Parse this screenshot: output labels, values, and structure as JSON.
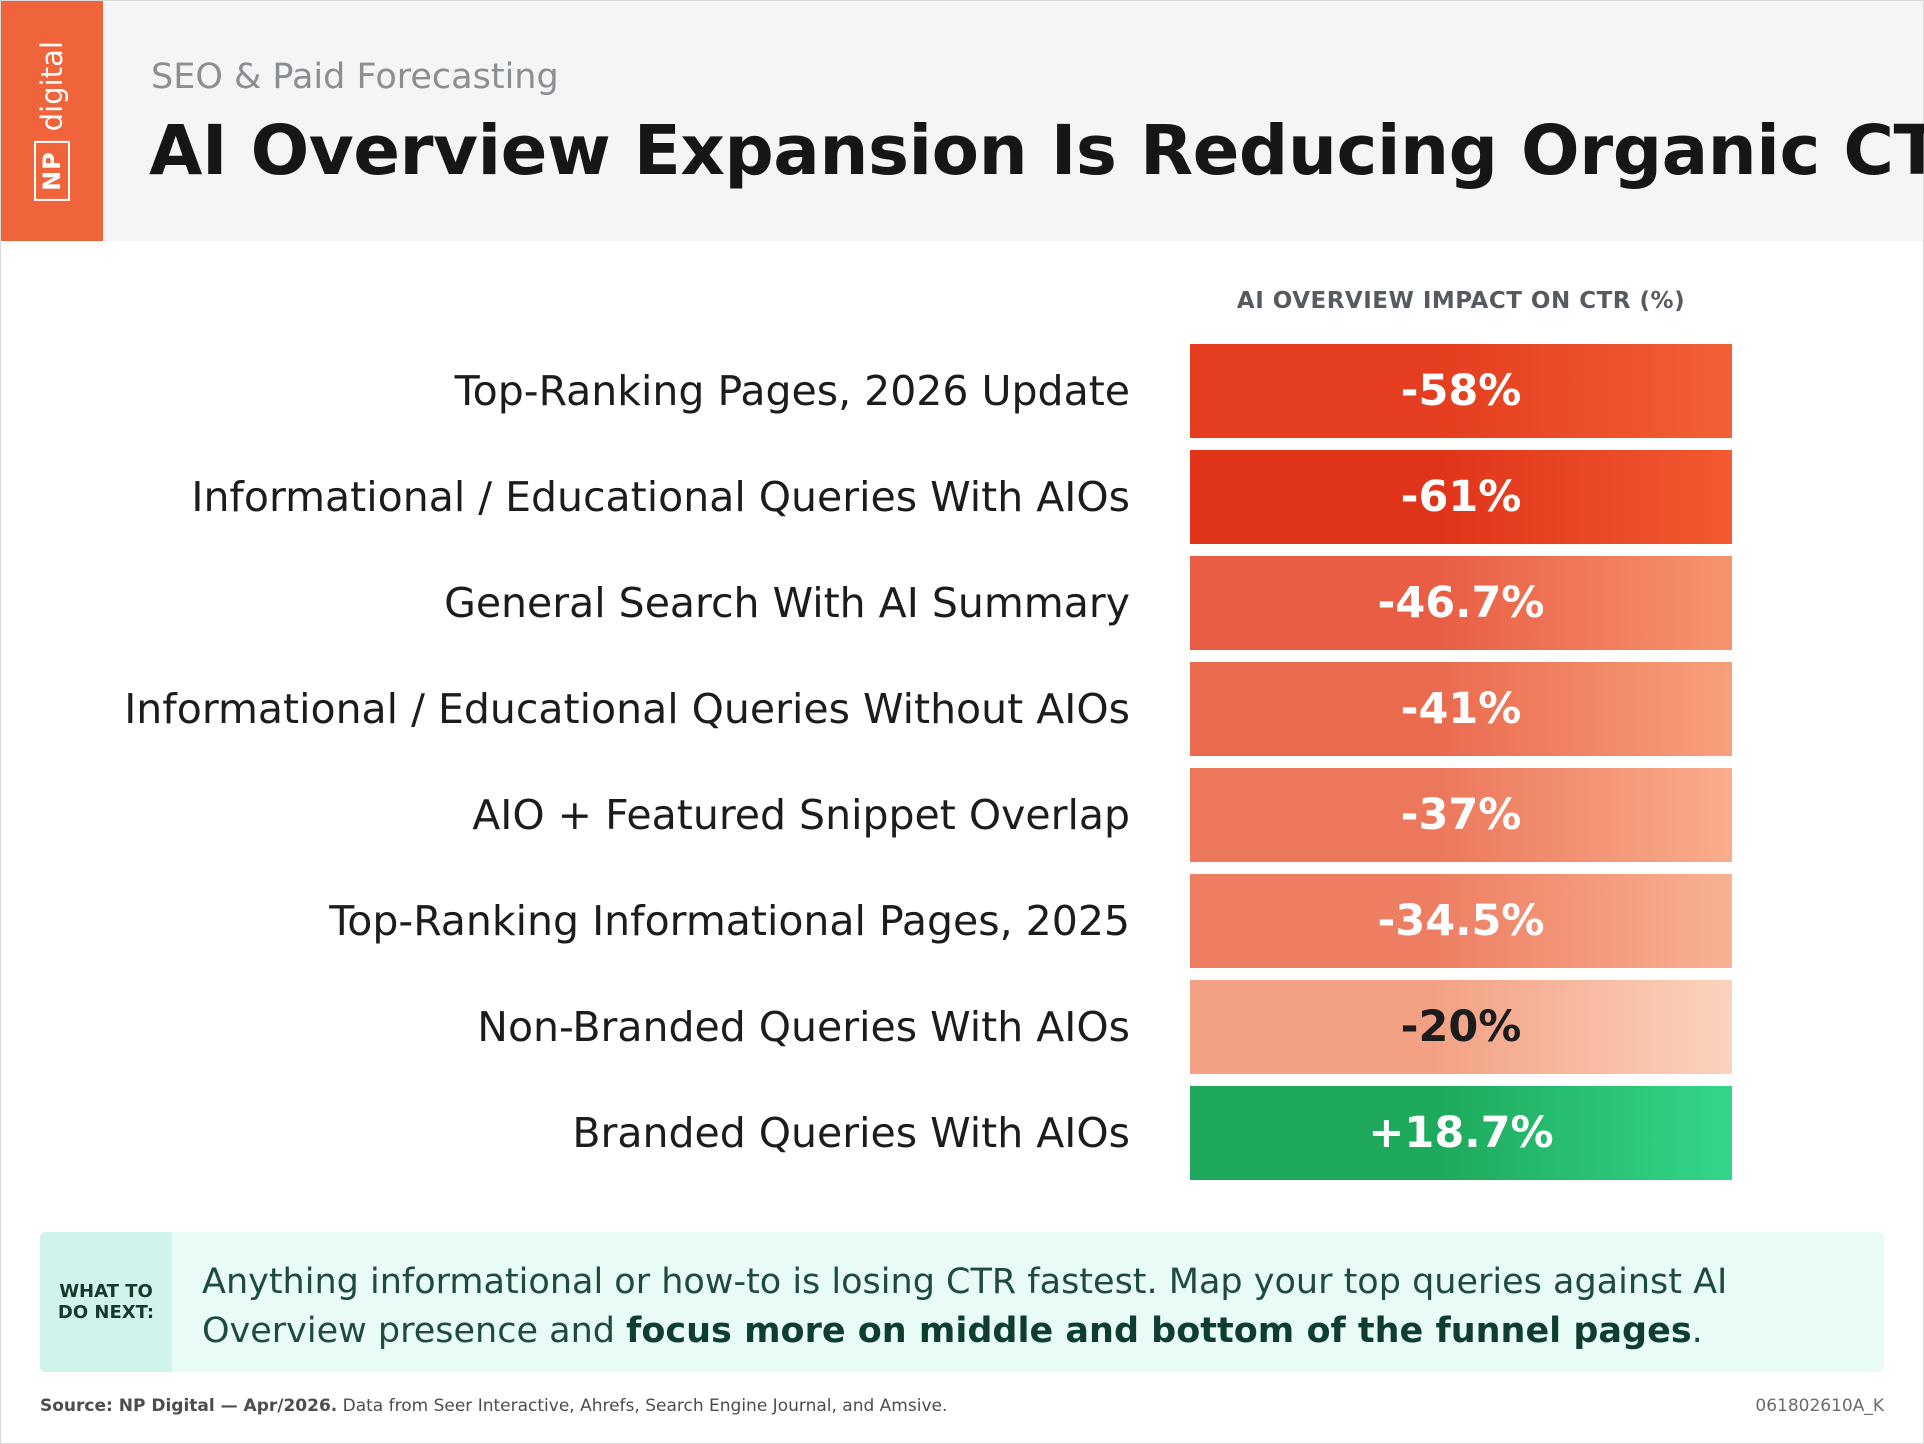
{
  "brand": {
    "logo_np": "NP",
    "logo_digital": "digital"
  },
  "header": {
    "subtitle": "SEO & Paid Forecasting",
    "title": "AI Overview Expansion Is Reducing Organic CTR"
  },
  "chart_data": {
    "type": "table",
    "column_header": "AI OVERVIEW IMPACT ON CTR (%)",
    "rows": [
      {
        "label": "Top-Ranking Pages, 2026 Update",
        "display": "-58%",
        "value": -58,
        "color_start": "#e43d1f",
        "color_end": "#f26036",
        "text_color": "#ffffff"
      },
      {
        "label": "Informational / Educational Queries With AIOs",
        "display": "-61%",
        "value": -61,
        "color_start": "#e0341a",
        "color_end": "#f25a30",
        "text_color": "#ffffff"
      },
      {
        "label": "General Search With AI Summary",
        "display": "-46.7%",
        "value": -46.7,
        "color_start": "#e85d44",
        "color_end": "#f7946d",
        "text_color": "#ffffff"
      },
      {
        "label": "Informational / Educational Queries Without AIOs",
        "display": "-41%",
        "value": -41,
        "color_start": "#ea6a4e",
        "color_end": "#f7a07c",
        "text_color": "#ffffff"
      },
      {
        "label": "AIO + Featured Snippet Overlap",
        "display": "-37%",
        "value": -37,
        "color_start": "#ec775b",
        "color_end": "#f8ad8c",
        "text_color": "#ffffff"
      },
      {
        "label": "Top-Ranking Informational Pages, 2025",
        "display": "-34.5%",
        "value": -34.5,
        "color_start": "#ee7e62",
        "color_end": "#f8b193",
        "text_color": "#ffffff"
      },
      {
        "label": "Non-Branded Queries With AIOs",
        "display": "-20%",
        "value": -20,
        "color_start": "#f3a184",
        "color_end": "#fbd3bd",
        "text_color": "#1c1c1c"
      },
      {
        "label": "Branded Queries With AIOs",
        "display": "+18.7%",
        "value": 18.7,
        "color_start": "#1ea95c",
        "color_end": "#33d68a",
        "text_color": "#ffffff"
      }
    ]
  },
  "note": {
    "tag_line1": "WHAT TO",
    "tag_line2": "DO NEXT:",
    "text_plain": "Anything informational or how-to is losing CTR fastest. Map your top queries against AI Overview presence and ",
    "text_bold": "focus more on middle and bottom of the funnel pages",
    "text_end": "."
  },
  "footer": {
    "source_bold": "Source: NP Digital — Apr/2026.",
    "source_rest": " Data from Seer Interactive, Ahrefs, Search Engine Journal, and Amsive.",
    "code": "061802610A_K"
  }
}
